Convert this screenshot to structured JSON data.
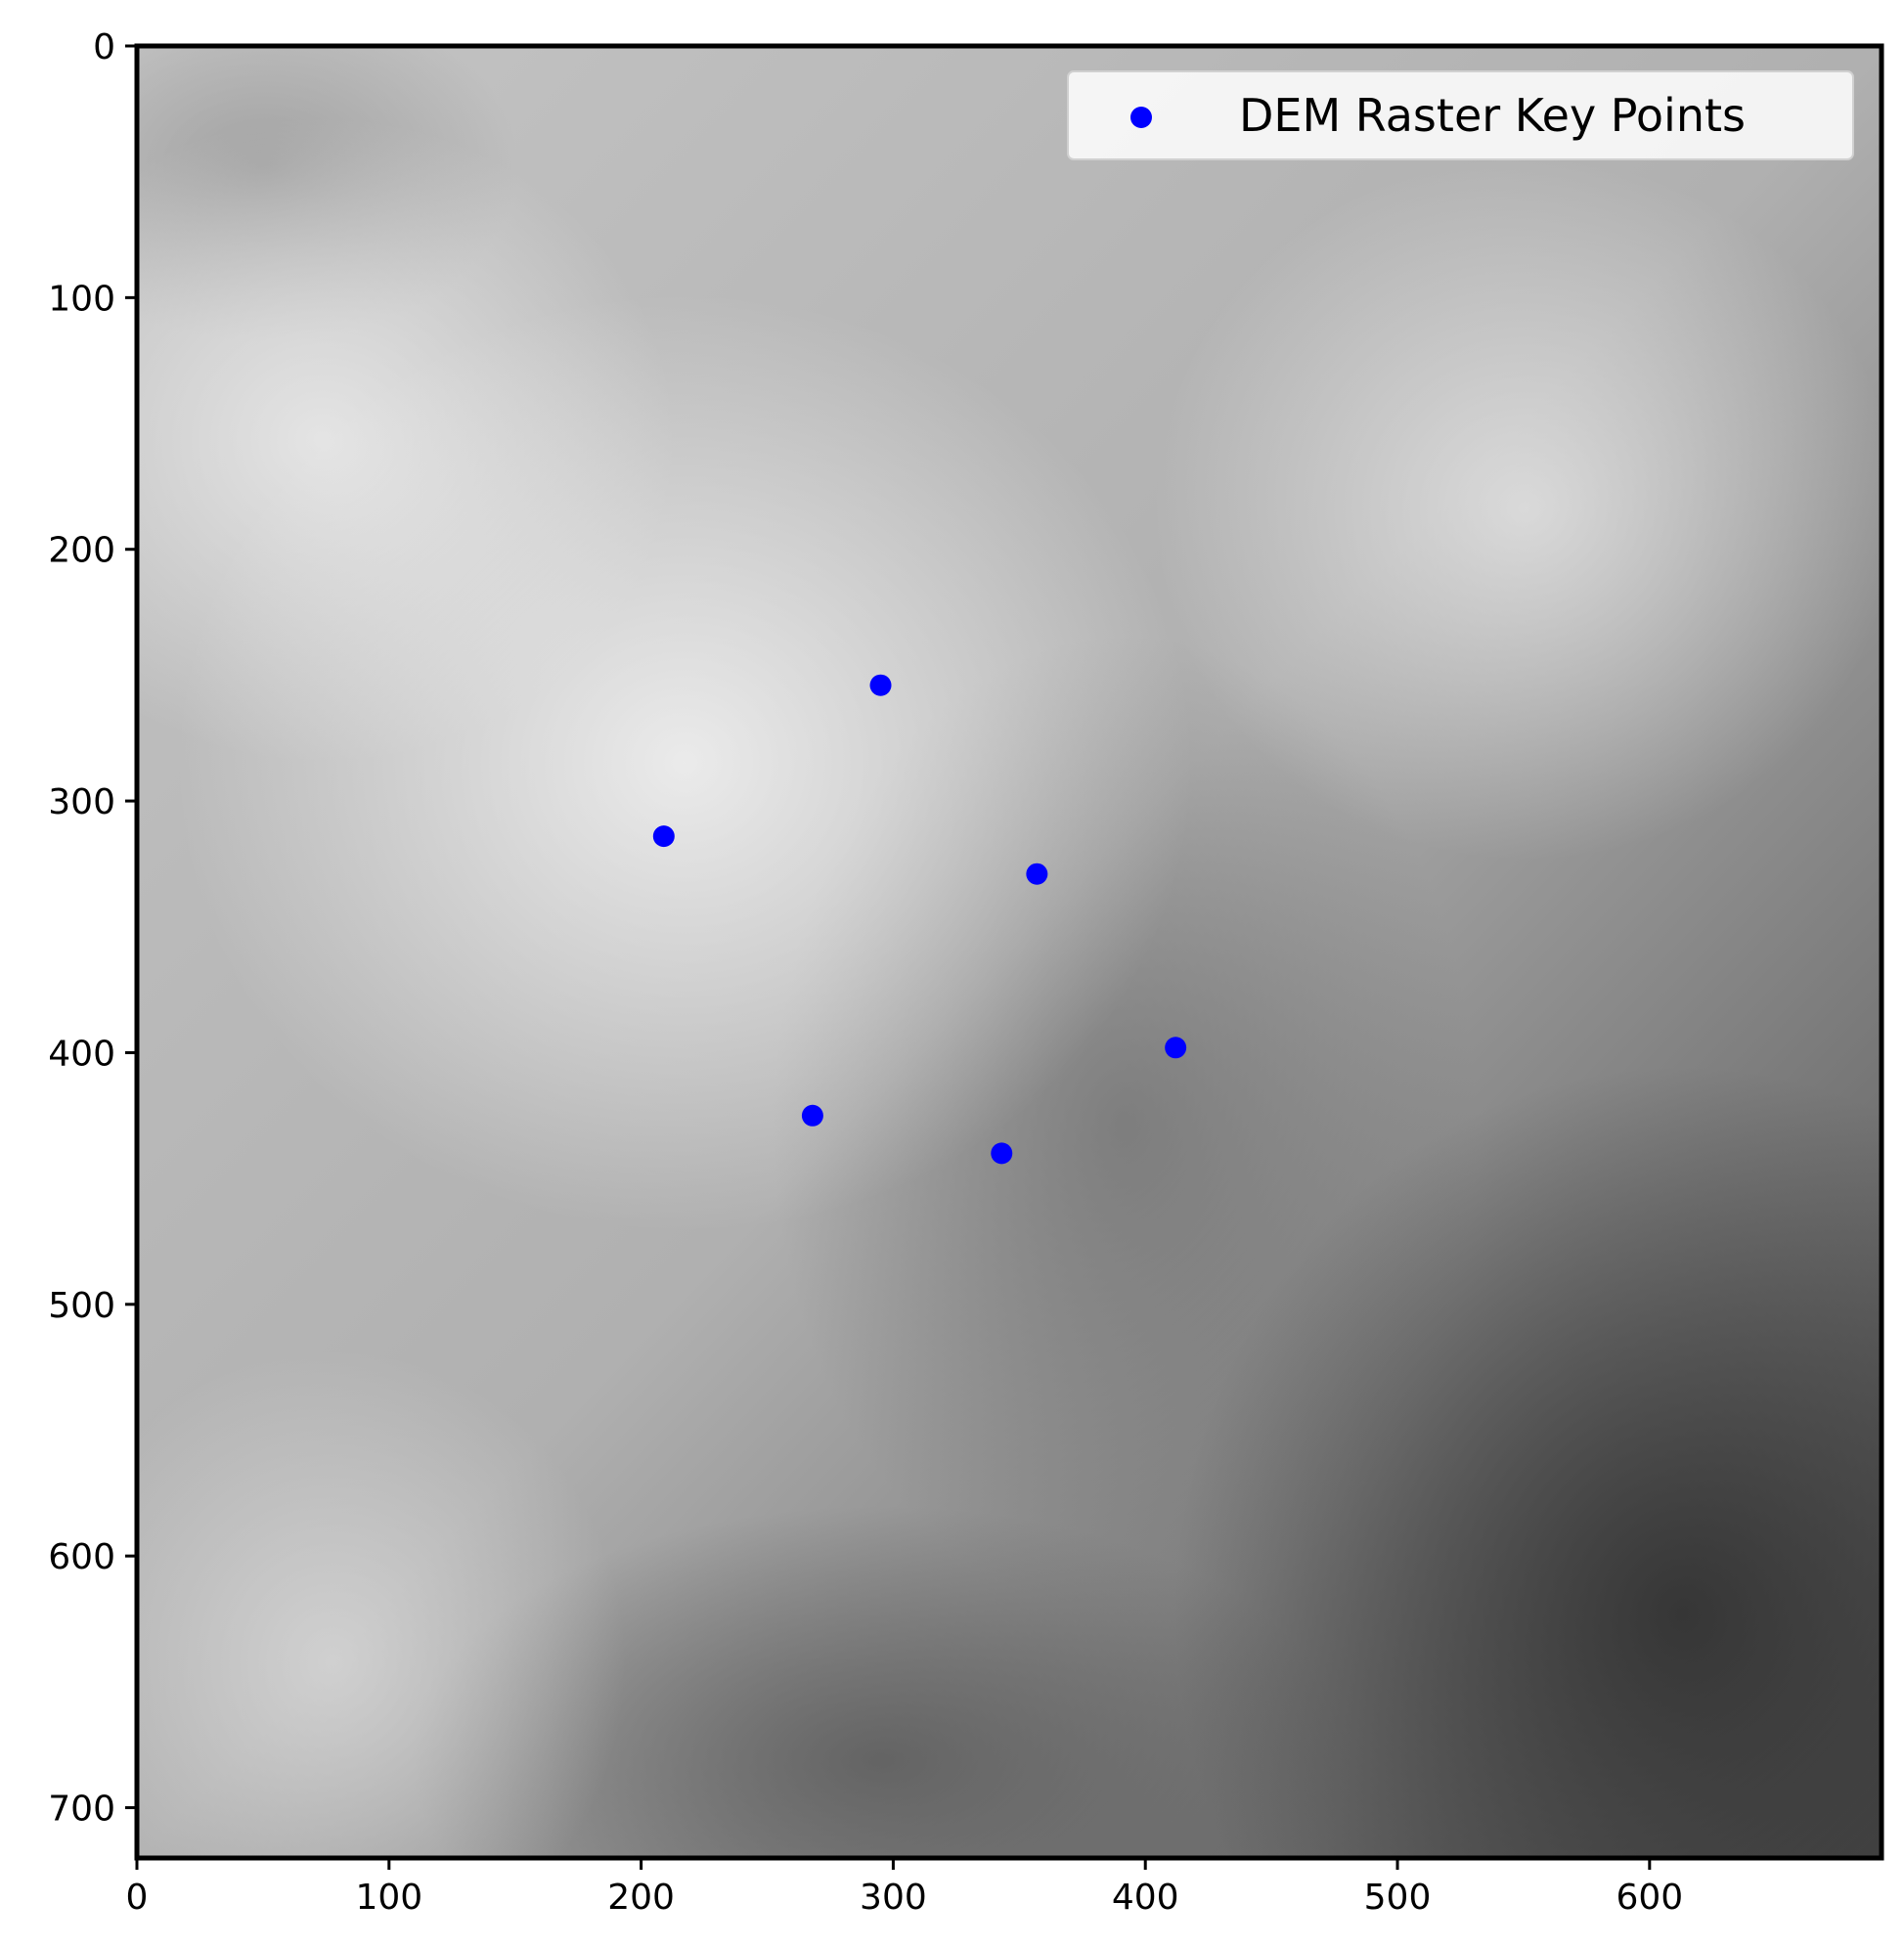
{
  "chart_data": {
    "type": "scatter",
    "title": "",
    "xlabel": "",
    "ylabel": "",
    "xlim": [
      0,
      692
    ],
    "ylim": [
      720,
      0
    ],
    "x_ticks": [
      "0",
      "100",
      "200",
      "300",
      "400",
      "500",
      "600"
    ],
    "y_ticks": [
      "0",
      "100",
      "200",
      "300",
      "400",
      "500",
      "600",
      "700"
    ],
    "background": "grayscale DEM raster (elevation shaded light = high, dark = low)",
    "legend_placement": "top-right",
    "series": [
      {
        "name": "DEM Raster Key Points",
        "color": "#0000ff",
        "points": [
          {
            "x": 295,
            "y": 254
          },
          {
            "x": 209,
            "y": 314
          },
          {
            "x": 357,
            "y": 329
          },
          {
            "x": 412,
            "y": 398
          },
          {
            "x": 268,
            "y": 425
          },
          {
            "x": 343,
            "y": 440
          }
        ]
      }
    ],
    "grid": false
  }
}
